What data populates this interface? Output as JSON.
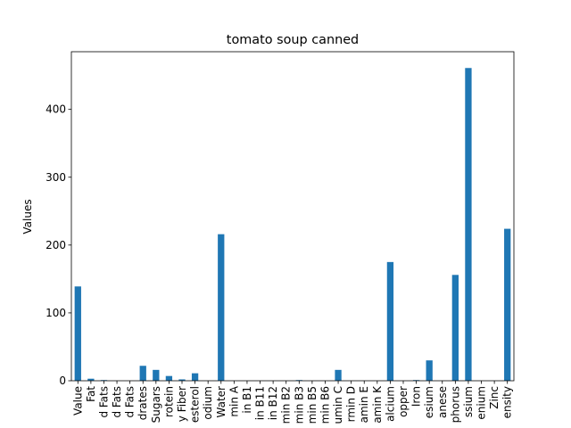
{
  "chart_data": {
    "type": "bar",
    "title": "tomato soup canned",
    "xlabel": "",
    "ylabel": "Values",
    "ylim": [
      0,
      485
    ],
    "yticks": [
      0,
      100,
      200,
      300,
      400
    ],
    "grid": false,
    "legend": "none",
    "bar_color": "#1f77b4",
    "categories": [
      "Value",
      "Fat",
      "d Fats",
      "d Fats",
      "d Fats",
      "drates",
      "Sugars",
      "rotein",
      "y Fiber",
      "esterol",
      "odium",
      "Water",
      "min A",
      "in B1",
      "in B11",
      "in B12",
      "min B2",
      "min B3",
      "min B5",
      "min B6",
      "umin C",
      "rmin D",
      "amin E",
      "amin K",
      "alcium",
      "opper",
      "Iron",
      "esium",
      "anese",
      "phorus",
      "ssium",
      "enium",
      "Zinc",
      "ensity"
    ],
    "values": [
      139,
      3,
      1,
      0,
      0,
      22,
      16,
      7,
      2,
      11,
      0,
      216,
      0,
      0,
      0,
      0,
      0,
      1,
      0,
      0,
      16,
      0,
      0,
      0,
      175,
      0,
      1,
      30,
      0,
      156,
      461,
      0,
      0,
      224
    ]
  }
}
